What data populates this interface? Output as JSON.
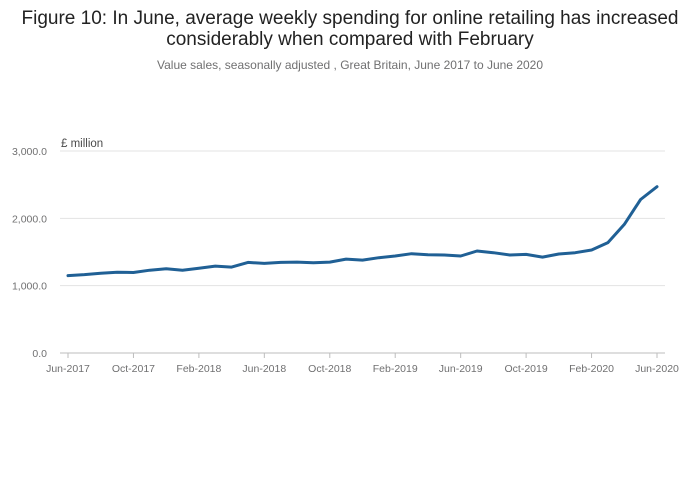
{
  "chart_data": {
    "type": "line",
    "title": "Figure 10: In June, average weekly spending for online retailing has increased considerably when compared with February",
    "subtitle": "Value sales, seasonally adjusted , Great Britain, June 2017 to June 2020",
    "ylabel": "£ million",
    "xlabel": "",
    "ylim": [
      0,
      3000
    ],
    "y_ticks": [
      0,
      1000,
      2000,
      3000
    ],
    "y_tick_labels": [
      "0.0",
      "1,000.0",
      "2,000.0",
      "3,000.0"
    ],
    "x_tick_labels": [
      "Jun-2017",
      "Oct-2017",
      "Feb-2018",
      "Jun-2018",
      "Oct-2018",
      "Feb-2019",
      "Jun-2019",
      "Oct-2019",
      "Feb-2020",
      "Jun-2020"
    ],
    "grid": true,
    "legend": "none",
    "series": [
      {
        "color": "#206095",
        "x": [
          "Jun-2017",
          "Jul-2017",
          "Aug-2017",
          "Sep-2017",
          "Oct-2017",
          "Nov-2017",
          "Dec-2017",
          "Jan-2018",
          "Feb-2018",
          "Mar-2018",
          "Apr-2018",
          "May-2018",
          "Jun-2018",
          "Jul-2018",
          "Aug-2018",
          "Sep-2018",
          "Oct-2018",
          "Nov-2018",
          "Dec-2018",
          "Jan-2019",
          "Feb-2019",
          "Mar-2019",
          "Apr-2019",
          "May-2019",
          "Jun-2019",
          "Jul-2019",
          "Aug-2019",
          "Sep-2019",
          "Oct-2019",
          "Nov-2019",
          "Dec-2019",
          "Jan-2020",
          "Feb-2020",
          "Mar-2020",
          "Apr-2020",
          "May-2020",
          "Jun-2020"
        ],
        "values": [
          1150,
          1165,
          1185,
          1200,
          1195,
          1230,
          1250,
          1230,
          1260,
          1290,
          1275,
          1345,
          1330,
          1345,
          1350,
          1340,
          1350,
          1395,
          1380,
          1415,
          1440,
          1475,
          1460,
          1455,
          1440,
          1515,
          1490,
          1455,
          1465,
          1425,
          1470,
          1490,
          1530,
          1640,
          1910,
          2280,
          2470
        ]
      }
    ]
  }
}
